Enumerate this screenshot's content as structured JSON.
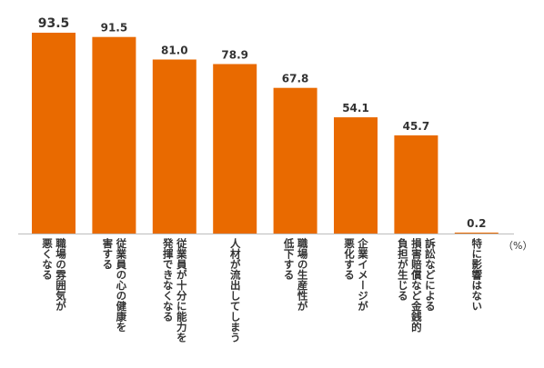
{
  "chart_data": {
    "type": "bar",
    "title": "",
    "xlabel": "",
    "ylabel": "",
    "unit": "（%）",
    "ylim": [
      0,
      100
    ],
    "grid": false,
    "bar_color": "#E96A00",
    "categories": [
      [
        "職場の雰囲気が",
        "悪くなる"
      ],
      [
        "従業員の心の健康を",
        "害する"
      ],
      [
        "従業員が十分に能力を",
        "発揮できなくなる"
      ],
      [
        "人材が流出してしまう"
      ],
      [
        "職場の生産性が",
        "低下する"
      ],
      [
        "企業イメージが",
        "悪化する"
      ],
      [
        "訴訟などによる",
        "損害賠償など金銭的",
        "負担が生じる"
      ],
      [
        "特に影響はない"
      ]
    ],
    "values": [
      93.5,
      91.5,
      81.0,
      78.9,
      67.8,
      54.1,
      45.7,
      0.2
    ],
    "value_labels": [
      "93.5",
      "91.5",
      "81.0",
      "78.9",
      "67.8",
      "54.1",
      "45.7",
      "0.2"
    ]
  }
}
